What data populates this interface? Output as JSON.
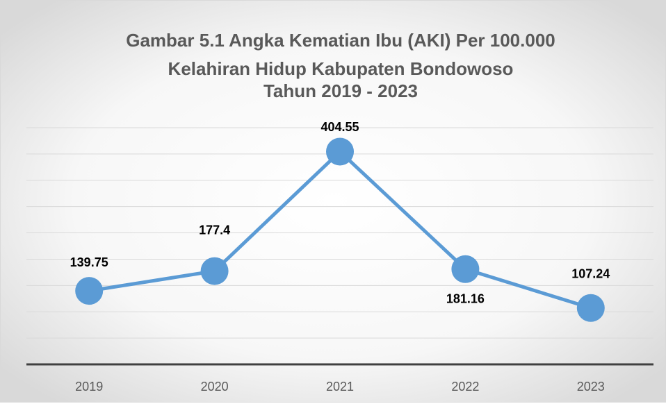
{
  "chart_data": {
    "type": "line",
    "title": [
      "Gambar 5.1 Angka Kematian Ibu (AKI) Per 100.000",
      "Kelahiran Hidup Kabupaten Bondowoso",
      "Tahun 2019 - 2023"
    ],
    "categories": [
      "2019",
      "2020",
      "2021",
      "2022",
      "2023"
    ],
    "series": [
      {
        "name": "AKI",
        "color": "#5b9bd5",
        "values": [
          139.75,
          177.4,
          404.55,
          181.16,
          107.24
        ]
      }
    ],
    "ylim": [
      0,
      450
    ],
    "yticks": [
      0,
      50,
      100,
      150,
      200,
      250,
      300,
      350,
      400,
      450
    ],
    "grid": true
  }
}
